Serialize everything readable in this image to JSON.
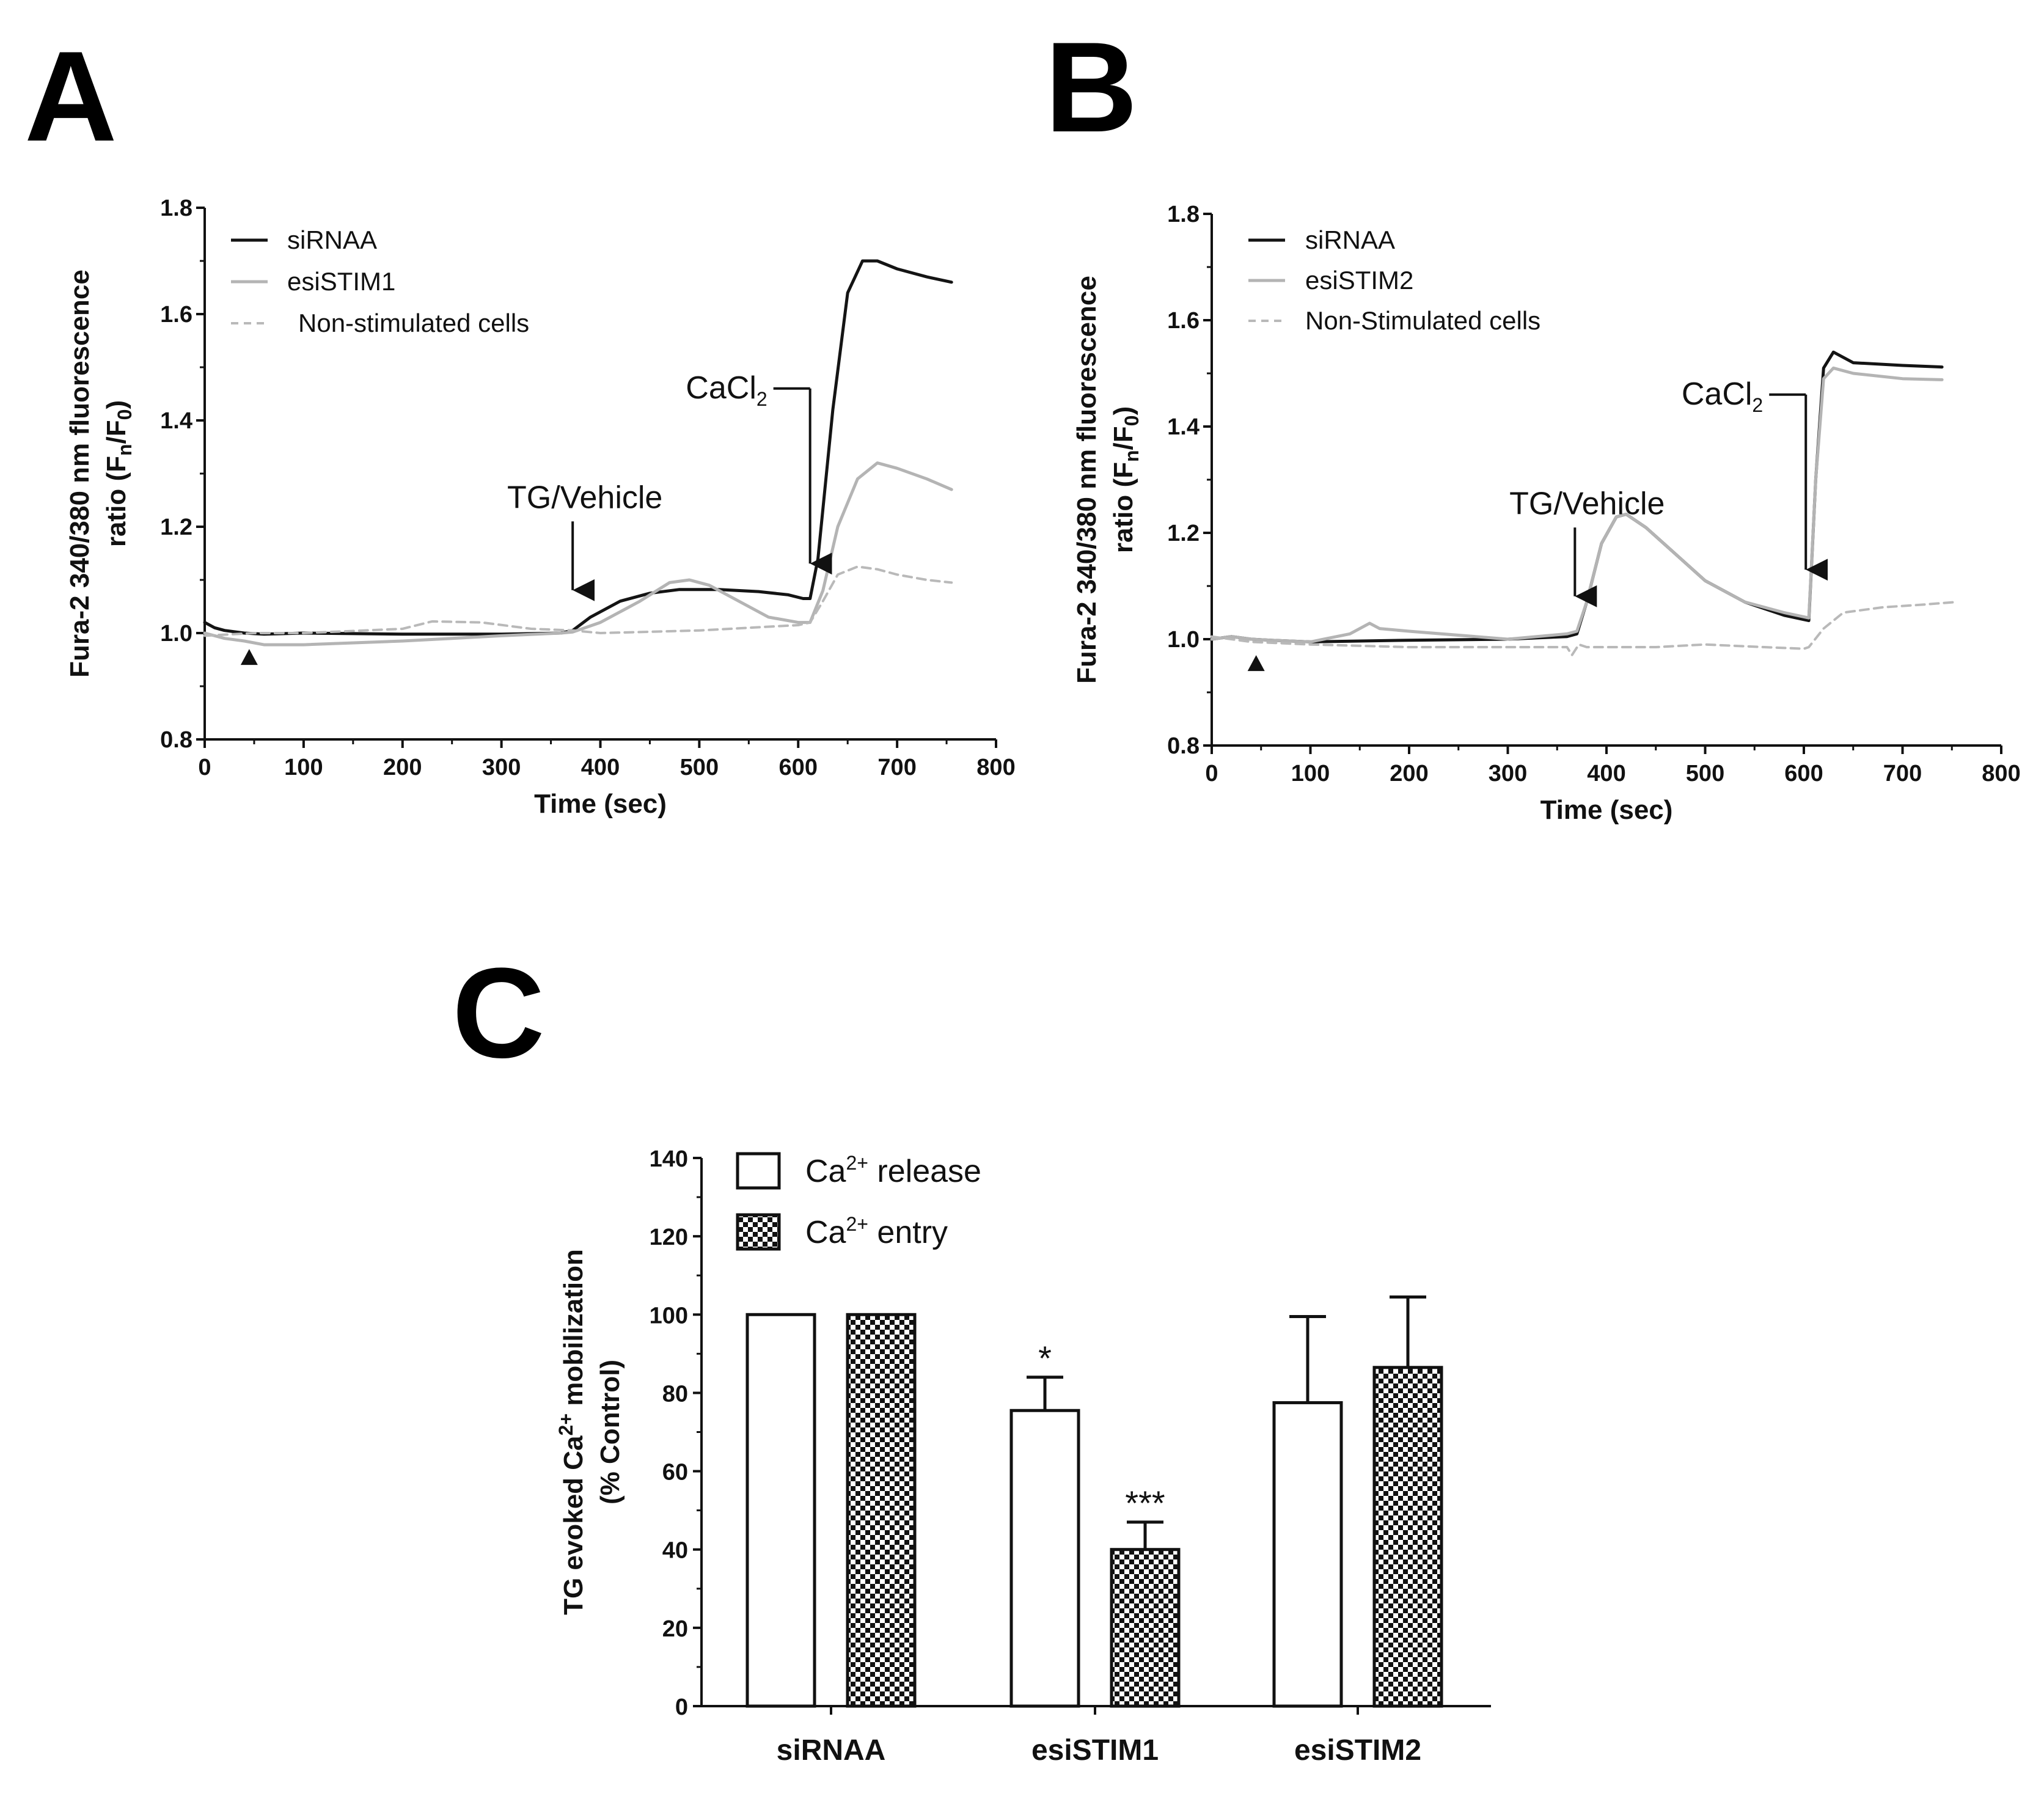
{
  "panels": {
    "A": "A",
    "B": "B",
    "C": "C"
  },
  "colors": {
    "black_trace": "#141414",
    "gray_trace": "#b4b4b4",
    "dashed_trace": "#b9b9b9"
  },
  "chart_data": [
    {
      "id": "A",
      "type": "line",
      "title": "",
      "xlabel": "Time (sec)",
      "ylabel_line1": "Fura-2 340/380 nm fluorescence",
      "ylabel_line2_prefix": "ratio  (F",
      "ylabel_sub1": "n",
      "ylabel_mid": "/F",
      "ylabel_sub2": "0",
      "ylabel_suffix": ")",
      "xlim": [
        0,
        800
      ],
      "ylim": [
        0.8,
        1.8
      ],
      "xticks": [
        "0",
        "100",
        "200",
        "300",
        "400",
        "500",
        "600",
        "700",
        "800"
      ],
      "yticks": [
        "0.8",
        "1.0",
        "1.2",
        "1.4",
        "1.6",
        "1.8"
      ],
      "xtick_values": [
        0,
        100,
        200,
        300,
        400,
        500,
        600,
        700,
        800
      ],
      "ytick_values": [
        0.8,
        1.0,
        1.2,
        1.4,
        1.6,
        1.8
      ],
      "annotations": {
        "tg": "TG/Vehicle",
        "cacl_main": "CaCl",
        "cacl_sub": "2"
      },
      "tg_time": 372,
      "cacl_time": 612,
      "marker_time": 45,
      "series": [
        {
          "name": "siRNAA",
          "style": "black",
          "x": [
            0,
            10,
            20,
            40,
            60,
            100,
            200,
            300,
            360,
            372,
            390,
            420,
            450,
            480,
            520,
            560,
            590,
            605,
            612,
            620,
            635,
            650,
            665,
            680,
            700,
            730,
            755
          ],
          "y": [
            1.02,
            1.01,
            1.005,
            1.0,
            0.998,
            1.0,
            0.998,
            0.998,
            1.0,
            1.005,
            1.03,
            1.06,
            1.075,
            1.082,
            1.082,
            1.078,
            1.072,
            1.065,
            1.065,
            1.14,
            1.42,
            1.64,
            1.7,
            1.7,
            1.685,
            1.67,
            1.66
          ]
        },
        {
          "name": "esiSTIM1",
          "style": "gray",
          "x": [
            0,
            20,
            40,
            60,
            100,
            200,
            300,
            360,
            372,
            400,
            440,
            470,
            490,
            510,
            540,
            570,
            600,
            612,
            625,
            640,
            660,
            680,
            700,
            730,
            755
          ],
          "y": [
            1.0,
            0.99,
            0.985,
            0.978,
            0.978,
            0.985,
            0.995,
            1.0,
            1.002,
            1.02,
            1.06,
            1.095,
            1.1,
            1.09,
            1.06,
            1.03,
            1.02,
            1.02,
            1.08,
            1.2,
            1.29,
            1.32,
            1.31,
            1.29,
            1.27
          ]
        },
        {
          "name": "Non-stimulated cells",
          "style": "dashed",
          "x": [
            0,
            50,
            100,
            200,
            230,
            280,
            330,
            372,
            400,
            500,
            600,
            612,
            625,
            640,
            660,
            680,
            700,
            730,
            755
          ],
          "y": [
            0.995,
            1.0,
            1.0,
            1.008,
            1.022,
            1.02,
            1.008,
            1.005,
            1.0,
            1.005,
            1.015,
            1.02,
            1.06,
            1.11,
            1.125,
            1.12,
            1.11,
            1.1,
            1.095
          ]
        }
      ]
    },
    {
      "id": "B",
      "type": "line",
      "title": "",
      "xlabel": "Time (sec)",
      "ylabel_line1": "Fura-2 340/380 nm fluorescence",
      "ylabel_line2_prefix": "ratio  (F",
      "ylabel_sub1": "n",
      "ylabel_mid": "/F",
      "ylabel_sub2": "0",
      "ylabel_suffix": ")",
      "xlim": [
        0,
        800
      ],
      "ylim": [
        0.8,
        1.8
      ],
      "xticks": [
        "0",
        "100",
        "200",
        "300",
        "400",
        "500",
        "600",
        "700",
        "800"
      ],
      "yticks": [
        "0.8",
        "1.0",
        "1.2",
        "1.4",
        "1.6",
        "1.8"
      ],
      "xtick_values": [
        0,
        100,
        200,
        300,
        400,
        500,
        600,
        700,
        800
      ],
      "ytick_values": [
        0.8,
        1.0,
        1.2,
        1.4,
        1.6,
        1.8
      ],
      "annotations": {
        "tg": "TG/Vehicle",
        "cacl_main": "CaCl",
        "cacl_sub": "2"
      },
      "tg_time": 368,
      "cacl_time": 602,
      "marker_time": 45,
      "series": [
        {
          "name": "siRNAA",
          "style": "black",
          "x": [
            0,
            20,
            40,
            60,
            100,
            200,
            300,
            360,
            370,
            380,
            395,
            410,
            420,
            440,
            470,
            500,
            540,
            580,
            605,
            612,
            620,
            630,
            650,
            700,
            740
          ],
          "y": [
            1.0,
            1.005,
            1.0,
            0.998,
            0.995,
            0.998,
            1.0,
            1.005,
            1.01,
            1.07,
            1.18,
            1.23,
            1.235,
            1.21,
            1.16,
            1.11,
            1.07,
            1.045,
            1.035,
            1.3,
            1.51,
            1.54,
            1.52,
            1.515,
            1.512
          ]
        },
        {
          "name": "esiSTIM2",
          "style": "gray",
          "x": [
            0,
            20,
            40,
            60,
            100,
            140,
            160,
            170,
            200,
            300,
            360,
            370,
            380,
            395,
            410,
            420,
            440,
            470,
            500,
            540,
            580,
            605,
            612,
            620,
            630,
            650,
            700,
            740
          ],
          "y": [
            1.0,
            1.005,
            1.0,
            0.998,
            0.995,
            1.01,
            1.03,
            1.02,
            1.015,
            1.0,
            1.01,
            1.015,
            1.07,
            1.18,
            1.23,
            1.235,
            1.21,
            1.16,
            1.11,
            1.07,
            1.05,
            1.04,
            1.3,
            1.49,
            1.51,
            1.5,
            1.49,
            1.488
          ]
        },
        {
          "name": "Non-Stimulated cells",
          "style": "dashed",
          "x": [
            0,
            40,
            100,
            200,
            300,
            360,
            365,
            372,
            380,
            450,
            500,
            560,
            600,
            605,
            620,
            640,
            680,
            720,
            755
          ],
          "y": [
            1.005,
            0.995,
            0.99,
            0.985,
            0.985,
            0.985,
            0.97,
            0.99,
            0.985,
            0.985,
            0.99,
            0.985,
            0.982,
            0.985,
            1.02,
            1.05,
            1.06,
            1.065,
            1.07
          ]
        }
      ]
    },
    {
      "id": "C",
      "type": "bar",
      "title": "",
      "xlabel": "",
      "ylabel_line1_pre": "TG evoked Ca",
      "ylabel_line1_sup": "2+",
      "ylabel_line1_post": " mobilization",
      "ylabel_line2": "(% Control)",
      "ylim": [
        0,
        140
      ],
      "yticks": [
        "0",
        "20",
        "40",
        "60",
        "80",
        "100",
        "120",
        "140"
      ],
      "ytick_values": [
        0,
        20,
        40,
        60,
        80,
        100,
        120,
        140
      ],
      "categories": [
        "siRNAA",
        "esiSTIM1",
        "esiSTIM2"
      ],
      "legend": [
        {
          "pre": "Ca",
          "sup": "2+",
          "post": " release",
          "pattern": "open"
        },
        {
          "pre": "Ca",
          "sup": "2+",
          "post": " entry",
          "pattern": "checker"
        }
      ],
      "series": [
        {
          "name": "Ca2+ release",
          "values": [
            100,
            75.5,
            77.5
          ],
          "errors": [
            0,
            8.5,
            22
          ]
        },
        {
          "name": "Ca2+ entry",
          "values": [
            100,
            40,
            86.5
          ],
          "errors": [
            0,
            7,
            18
          ]
        }
      ],
      "significance": [
        {
          "category": "esiSTIM1",
          "series": 0,
          "label": "*"
        },
        {
          "category": "esiSTIM1",
          "series": 1,
          "label": "***"
        }
      ]
    }
  ]
}
